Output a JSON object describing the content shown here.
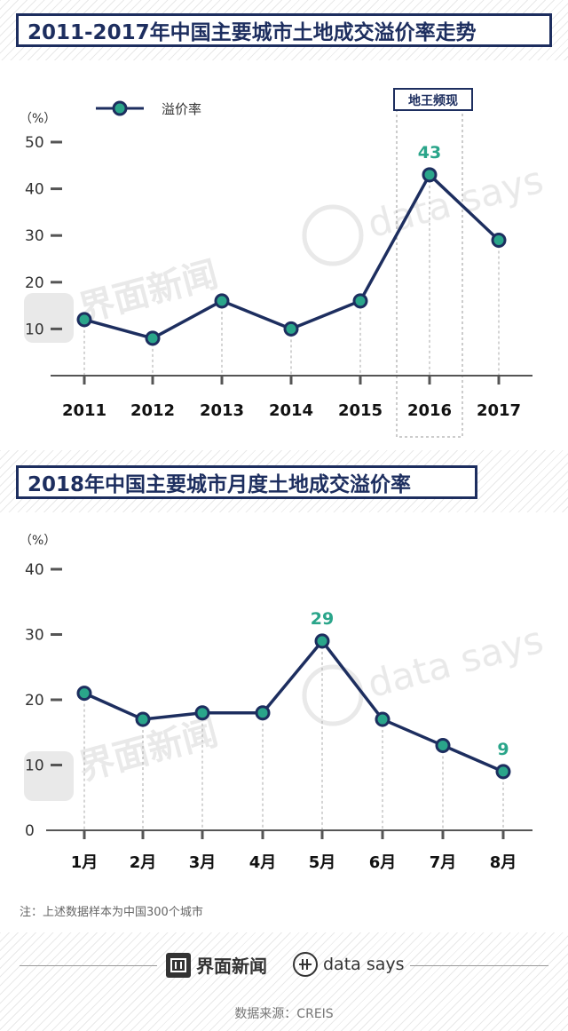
{
  "header1": {
    "title": "2011-2017年中国主要城市土地成交溢价率走势"
  },
  "header2": {
    "title": "2018年中国主要城市月度土地成交溢价率"
  },
  "watermark": {
    "brand_cn": "界面新闻",
    "brand_en": "data says"
  },
  "chart_data": [
    {
      "type": "line",
      "unit_label": "（%）",
      "legend": {
        "label": "溢价率",
        "position": "top-left"
      },
      "categories": [
        "2011",
        "2012",
        "2013",
        "2014",
        "2015",
        "2016",
        "2017"
      ],
      "series": [
        {
          "name": "溢价率",
          "values": [
            12,
            8,
            16,
            10,
            16,
            43,
            29
          ]
        }
      ],
      "y_ticks": [
        "10",
        "20",
        "30",
        "40",
        "50"
      ],
      "ylim": [
        0,
        50
      ],
      "highlight": {
        "label": "地王频现",
        "category": "2016"
      },
      "data_labels": [
        {
          "index": 5,
          "text": "43"
        }
      ],
      "colors": {
        "line": "#1d2e5f",
        "marker": "#2aa58a",
        "label": "#2aa58a"
      }
    },
    {
      "type": "line",
      "unit_label": "（%）",
      "categories": [
        "1月",
        "2月",
        "3月",
        "4月",
        "5月",
        "6月",
        "7月",
        "8月"
      ],
      "series": [
        {
          "values": [
            21,
            17,
            18,
            18,
            29,
            17,
            13,
            9
          ]
        }
      ],
      "y_ticks": [
        "0",
        "10",
        "20",
        "30",
        "40"
      ],
      "ylim": [
        0,
        40
      ],
      "data_labels": [
        {
          "index": 4,
          "text": "29"
        },
        {
          "index": 7,
          "text": "9"
        }
      ],
      "colors": {
        "line": "#1d2e5f",
        "marker": "#2aa58a",
        "label": "#2aa58a"
      }
    }
  ],
  "note": "注：上述数据样本为中国300个城市",
  "footer": {
    "brand_cn": "界面新闻",
    "brand_en": "data says",
    "source": "数据来源：CREIS"
  }
}
